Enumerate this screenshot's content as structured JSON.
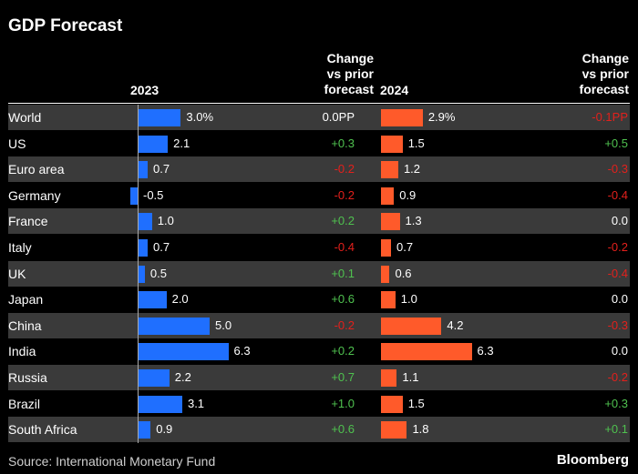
{
  "header": {
    "title": "GDP Forecast",
    "year_2023": "2023",
    "year_2024": "2024",
    "change_lines": [
      "Change",
      "vs prior",
      "forecast"
    ]
  },
  "footer": {
    "source": "Source: International Monetary Fund",
    "brand": "Bloomberg"
  },
  "colors": {
    "bar_2023": "#1f6fff",
    "bar_2024": "#ff5a2a",
    "positive": "#4fc14f",
    "negative": "#e2201c",
    "neutral": "#ffffff"
  },
  "chart_data": {
    "type": "bar",
    "categories": [
      "World",
      "US",
      "Euro area",
      "Germany",
      "France",
      "Italy",
      "UK",
      "Japan",
      "China",
      "India",
      "Russia",
      "Brazil",
      "South Africa"
    ],
    "series": [
      {
        "name": "2023",
        "values": [
          3.0,
          2.1,
          0.7,
          -0.5,
          1.0,
          0.7,
          0.5,
          2.0,
          5.0,
          6.3,
          2.2,
          3.1,
          0.9
        ],
        "labels": [
          "3.0%",
          "2.1",
          "0.7",
          "-0.5",
          "1.0",
          "0.7",
          "0.5",
          "2.0",
          "5.0",
          "6.3",
          "2.2",
          "3.1",
          "0.9"
        ],
        "change": [
          "0.0PP",
          "+0.3",
          "-0.2",
          "-0.2",
          "+0.2",
          "-0.4",
          "+0.1",
          "+0.6",
          "-0.2",
          "+0.2",
          "+0.7",
          "+1.0",
          "+0.6"
        ]
      },
      {
        "name": "2024",
        "values": [
          2.9,
          1.5,
          1.2,
          0.9,
          1.3,
          0.7,
          0.6,
          1.0,
          4.2,
          6.3,
          1.1,
          1.5,
          1.8
        ],
        "labels": [
          "2.9%",
          "1.5",
          "1.2",
          "0.9",
          "1.3",
          "0.7",
          "0.6",
          "1.0",
          "4.2",
          "6.3",
          "1.1",
          "1.5",
          "1.8"
        ],
        "change": [
          "-0.1PP",
          "+0.5",
          "-0.3",
          "-0.4",
          "0.0",
          "-0.2",
          "-0.4",
          "0.0",
          "-0.3",
          "0.0",
          "-0.2",
          "+0.3",
          "+0.1"
        ]
      }
    ],
    "title": "GDP Forecast",
    "xlabel": "",
    "ylabel": ""
  }
}
